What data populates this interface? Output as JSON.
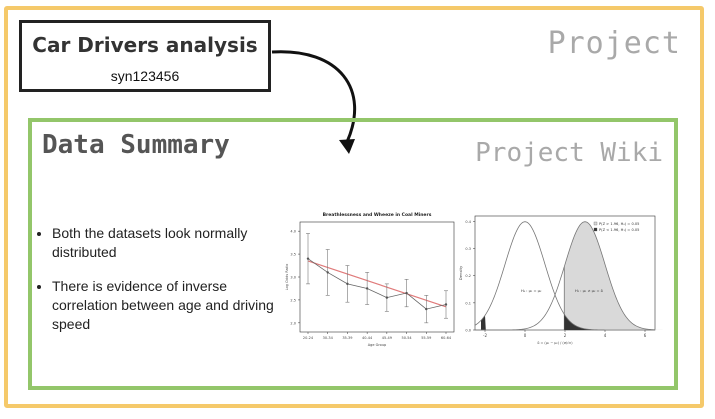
{
  "project_label": "Project",
  "title_box": {
    "title": "Car Drivers analysis",
    "id": "syn123456"
  },
  "wiki": {
    "label": "Project Wiki",
    "summary_title": "Data Summary",
    "bullets": [
      "Both the datasets look normally distributed",
      "There is evidence of inverse correlation between age and driving speed"
    ]
  },
  "colors": {
    "outer_border": "#f5c96a",
    "wiki_border": "#93c66a",
    "faded_label": "#a9a9a9"
  },
  "chart_data": [
    {
      "type": "line",
      "title": "Breathlessness and Wheeze in Coal Miners",
      "xlabel": "Age Group",
      "ylabel": "Log Odds Ratio",
      "categories": [
        "20-24",
        "30-34",
        "35-39",
        "40-44",
        "45-49",
        "50-54",
        "55-59",
        "60-64"
      ],
      "series": [
        {
          "values": [
            3.4,
            3.1,
            2.85,
            2.75,
            2.55,
            2.65,
            2.3,
            2.4
          ],
          "err": [
            0.55,
            0.5,
            0.4,
            0.35,
            0.3,
            0.3,
            0.3,
            0.3
          ]
        }
      ],
      "fit_line": [
        3.35,
        2.35
      ],
      "ylim": [
        1.8,
        4.2
      ],
      "yticks": [
        2.0,
        2.5,
        3.0,
        3.5,
        4.0
      ]
    },
    {
      "type": "area",
      "xlabel": "",
      "ylabel": "Density",
      "xticks": [
        -2,
        0,
        2,
        4,
        6
      ],
      "xlim": [
        -2.5,
        6.5
      ],
      "yticks": [
        0.0,
        0.1,
        0.2,
        0.3,
        0.4
      ],
      "ylim": [
        0,
        0.42
      ],
      "curves": [
        {
          "mean": 0,
          "sd": 1,
          "label": "H₀ : μ₁ = μ₂"
        },
        {
          "mean": 3,
          "sd": 1,
          "label": "H₁ : μ₁ ≠ μ₂ = δ"
        }
      ],
      "legend": [
        {
          "label": "P(Z > 1.96, H₀) = 0.05",
          "swatch": "#d9d9d9"
        },
        {
          "label": "P(Z < 1.96, H₁) = 0.05",
          "swatch": "#333333"
        }
      ],
      "legend_position": "top-right",
      "threshold": 1.96,
      "formula": "δ = (μ₁ − μ₂) / (σ/√n)"
    }
  ]
}
